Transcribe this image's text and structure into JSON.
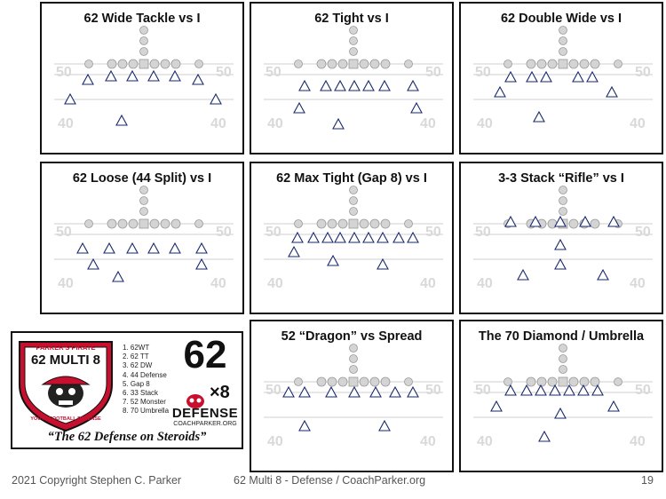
{
  "slides": [
    {
      "title": "62 Wide Tackle vs I"
    },
    {
      "title": "62 Tight vs I"
    },
    {
      "title": "62 Double Wide vs I"
    },
    {
      "title": "62 Loose (44 Split) vs I"
    },
    {
      "title": "62 Max Tight (Gap 8) vs I"
    },
    {
      "title": "3-3 Stack “Rifle” vs I"
    },
    {
      "title": "52 “Dragon” vs Spread"
    },
    {
      "title": "The 70 Diamond / Umbrella"
    }
  ],
  "yard_numbers": {
    "upper": "50",
    "lower": "40"
  },
  "logo": {
    "badge_top": "PARKER'S PIRATE",
    "badge_main": "62 MULTI 8",
    "badge_bottom": "YOUTH FOOTBALL DEFENSE",
    "emblem_number": "62",
    "emblem_multiplier": "×8",
    "emblem_word": "DEFENSE",
    "emblem_site": "COACHPARKER.ORG",
    "list": [
      "1. 62WT",
      "2. 62 TT",
      "3. 62 DW",
      "4. 44 Defense",
      "5. Gap 8",
      "6. 33 Stack",
      "7. 52 Monster",
      "8. 70 Umbrella"
    ],
    "tagline": "“The 62 Defense on Steroids”"
  },
  "footer": {
    "copyright": "2021 Copyright Stephen C. Parker",
    "center": "62 Multi 8 - Defense / CoachParker.org",
    "page": "19"
  },
  "colors": {
    "brand_red": "#c8102e",
    "defender_outline": "#1a2a6c",
    "border": "#111111"
  }
}
